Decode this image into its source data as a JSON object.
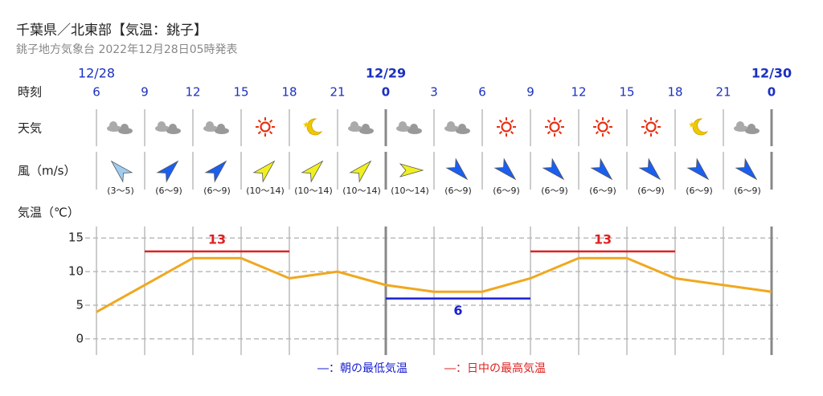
{
  "header": {
    "title": "千葉県／北東部【気温：銚子】",
    "subtitle": "銚子地方気象台 2022年12月28日05時発表"
  },
  "chart_data": {
    "type": "line",
    "row_labels": {
      "time": "時刻",
      "weather": "天気",
      "wind": "風（m/s）",
      "temp": "気温（℃）"
    },
    "date_labels": [
      "12/28",
      null,
      null,
      null,
      null,
      null,
      "12/29",
      null,
      null,
      null,
      null,
      null,
      null,
      null,
      "12/30"
    ],
    "categories": [
      "6",
      "9",
      "12",
      "15",
      "18",
      "21",
      "0",
      "3",
      "6",
      "9",
      "12",
      "15",
      "18",
      "21",
      "0"
    ],
    "weather": [
      "cloudy",
      "cloudy",
      "cloudy",
      "sunny",
      "clear-night",
      "cloudy",
      "cloudy",
      "cloudy",
      "sunny",
      "sunny",
      "sunny",
      "sunny",
      "clear-night",
      "cloudy"
    ],
    "wind": [
      {
        "direction": "NW",
        "speed": "(3～5)",
        "color": "#a0ccf0"
      },
      {
        "direction": "NE",
        "speed": "(6～9)",
        "color": "#1a5ff0"
      },
      {
        "direction": "NE",
        "speed": "(6～9)",
        "color": "#1a5ff0"
      },
      {
        "direction": "NE",
        "speed": "(10～14)",
        "color": "#f0f020"
      },
      {
        "direction": "NE",
        "speed": "(10～14)",
        "color": "#f0f020"
      },
      {
        "direction": "NE",
        "speed": "(10～14)",
        "color": "#f0f020"
      },
      {
        "direction": "E",
        "speed": "(10～14)",
        "color": "#f0f020"
      },
      {
        "direction": "SE",
        "speed": "(6～9)",
        "color": "#1a5ff0"
      },
      {
        "direction": "SE",
        "speed": "(6～9)",
        "color": "#1a5ff0"
      },
      {
        "direction": "SE",
        "speed": "(6～9)",
        "color": "#1a5ff0"
      },
      {
        "direction": "SE",
        "speed": "(6～9)",
        "color": "#1a5ff0"
      },
      {
        "direction": "SE",
        "speed": "(6～9)",
        "color": "#1a5ff0"
      },
      {
        "direction": "SE",
        "speed": "(6～9)",
        "color": "#1a5ff0"
      },
      {
        "direction": "SE",
        "speed": "(6～9)",
        "color": "#1a5ff0"
      }
    ],
    "values": [
      4,
      8,
      12,
      12,
      9,
      10,
      8,
      7,
      7,
      9,
      12,
      12,
      9,
      8,
      7
    ],
    "color": "#f0a820",
    "min_temp": {
      "name": "―：朝の最低気温",
      "color": "#1a20d0",
      "values": [
        null,
        null,
        null,
        null,
        null,
        null,
        6,
        6,
        6,
        6,
        null,
        null,
        null,
        null,
        null
      ]
    },
    "max_temp": {
      "name": "―：日中の最高気温",
      "color": "#e02020",
      "values": [
        null,
        13,
        13,
        13,
        13,
        null,
        null,
        null,
        null,
        13,
        13,
        13,
        13,
        null,
        null
      ]
    },
    "ylim": [
      -2.4,
      16.7
    ],
    "yticks": [
      0,
      5,
      10,
      15
    ],
    "grid": true
  }
}
